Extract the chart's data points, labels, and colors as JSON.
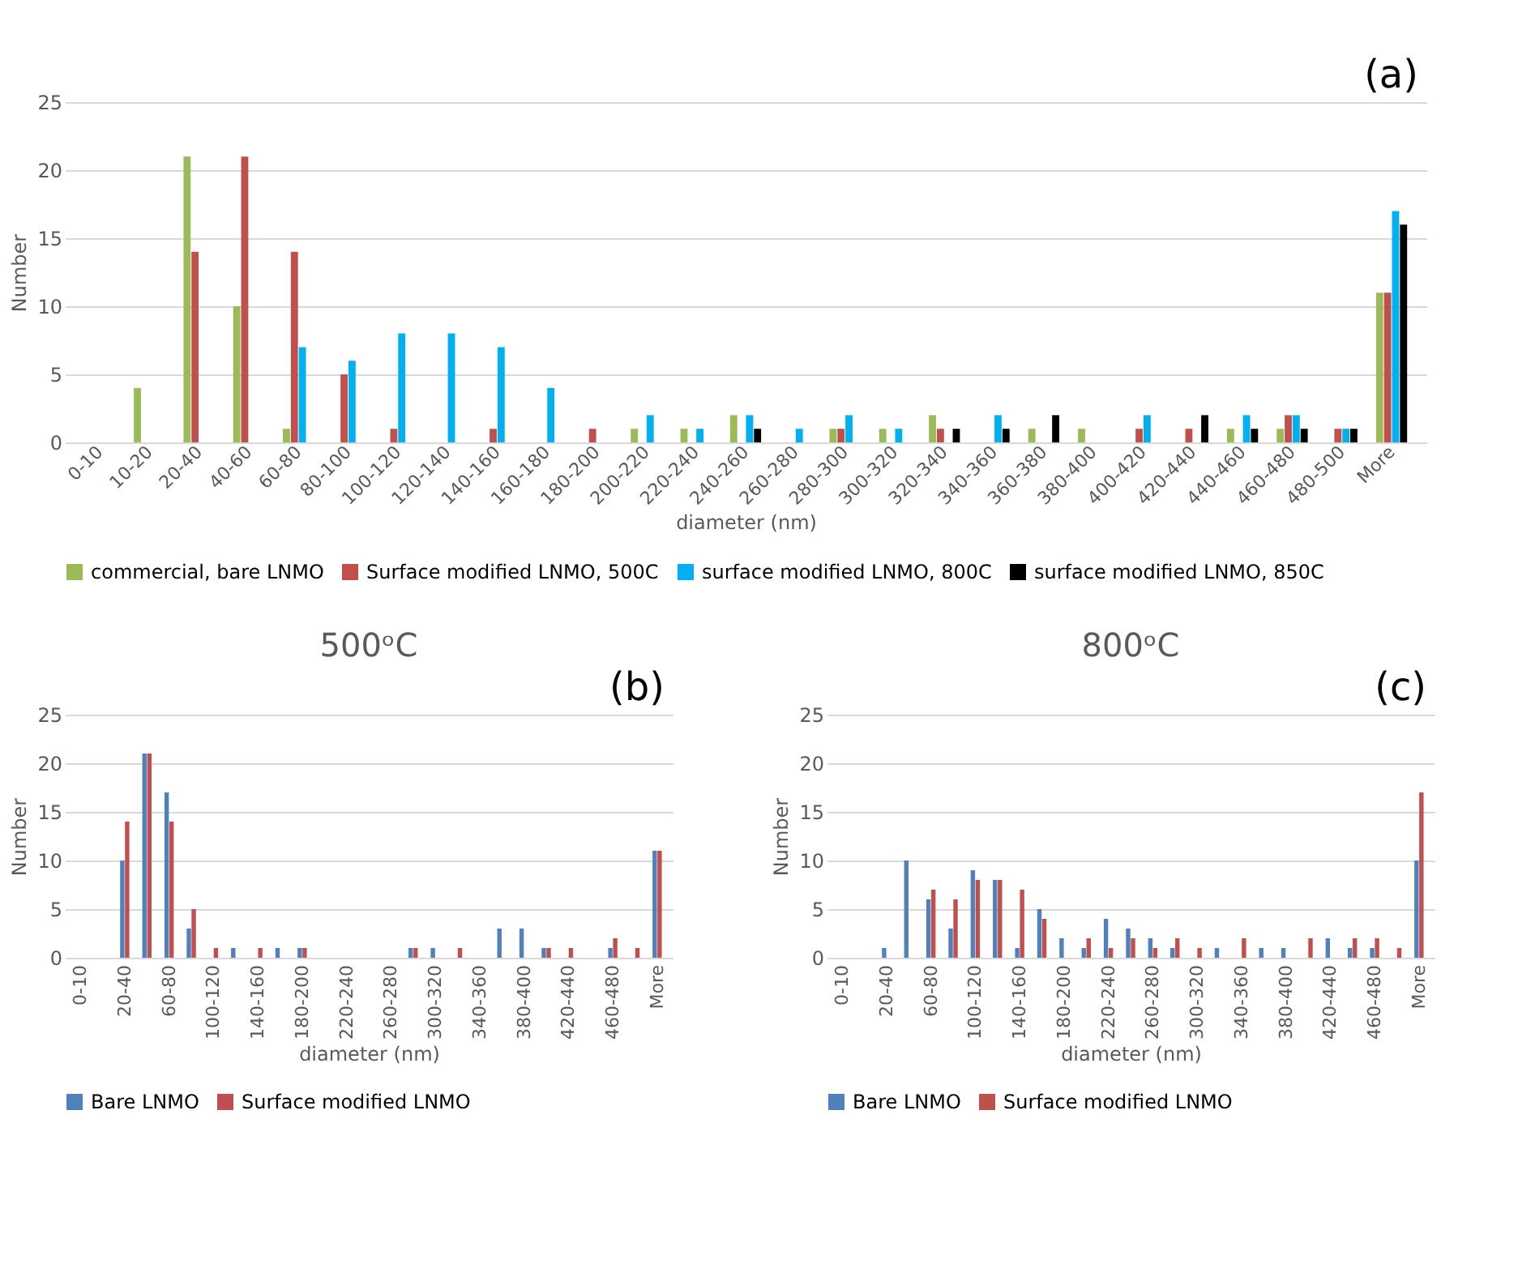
{
  "chart_data": [
    {
      "type": "bar",
      "categories": [
        "0-10",
        "10-20",
        "20-40",
        "40-60",
        "60-80",
        "80-100",
        "100-120",
        "120-140",
        "140-160",
        "160-180",
        "180-200",
        "200-220",
        "220-240",
        "240-260",
        "260-280",
        "280-300",
        "300-320",
        "320-340",
        "340-360",
        "360-380",
        "380-400",
        "400-420",
        "420-440",
        "440-460",
        "460-480",
        "480-500",
        "More"
      ],
      "series": [
        {
          "name": "commercial, bare LNMO",
          "color": "#9bbb59",
          "values": [
            0,
            4,
            21,
            10,
            1,
            0,
            0,
            0,
            0,
            0,
            0,
            1,
            1,
            2,
            0,
            1,
            1,
            2,
            0,
            1,
            1,
            0,
            0,
            1,
            1,
            0,
            11
          ]
        },
        {
          "name": "Surface modified LNMO, 500C",
          "color": "#c0504d",
          "values": [
            0,
            0,
            14,
            21,
            14,
            5,
            1,
            0,
            1,
            0,
            1,
            0,
            0,
            0,
            0,
            1,
            0,
            1,
            0,
            0,
            0,
            1,
            1,
            0,
            2,
            1,
            11
          ]
        },
        {
          "name": "surface modified LNMO, 800C",
          "color": "#00b0f0",
          "values": [
            0,
            0,
            0,
            0,
            7,
            6,
            8,
            8,
            7,
            4,
            0,
            2,
            1,
            2,
            1,
            2,
            1,
            0,
            2,
            0,
            0,
            2,
            0,
            2,
            2,
            1,
            17
          ]
        },
        {
          "name": "surface modified LNMO, 850C",
          "color": "#000000",
          "values": [
            0,
            0,
            0,
            0,
            0,
            0,
            0,
            0,
            0,
            0,
            0,
            0,
            0,
            1,
            0,
            0,
            0,
            1,
            1,
            2,
            0,
            0,
            2,
            1,
            1,
            1,
            16
          ]
        }
      ],
      "xlabel": "diameter (nm)",
      "ylabel": "Number",
      "ylim": [
        0,
        25
      ],
      "yticks": [
        0,
        5,
        10,
        15,
        20,
        25
      ],
      "grid": "y",
      "legend": "bottom",
      "annotations": [
        "(a)"
      ]
    },
    {
      "type": "bar",
      "title": "500ᵒC",
      "categories": [
        "0-10",
        null,
        "20-40",
        null,
        "60-80",
        null,
        "100-120",
        null,
        "140-160",
        null,
        "180-200",
        null,
        "220-240",
        null,
        "260-280",
        null,
        "300-320",
        null,
        "340-360",
        null,
        "380-400",
        null,
        "420-440",
        null,
        "460-480",
        null,
        "More"
      ],
      "series": [
        {
          "name": "Bare LNMO",
          "color": "#4f81bd",
          "values": [
            0,
            0,
            10,
            21,
            17,
            3,
            0,
            1,
            0,
            1,
            1,
            0,
            0,
            0,
            0,
            1,
            1,
            0,
            0,
            3,
            3,
            1,
            0,
            0,
            1,
            0,
            11
          ]
        },
        {
          "name": "Surface modified LNMO",
          "color": "#c0504d",
          "values": [
            0,
            0,
            14,
            21,
            14,
            5,
            1,
            0,
            1,
            0,
            1,
            0,
            0,
            0,
            0,
            1,
            0,
            1,
            0,
            0,
            0,
            1,
            1,
            0,
            2,
            1,
            11
          ]
        }
      ],
      "xlabel": "diameter (nm)",
      "ylabel": "Number",
      "ylim": [
        0,
        25
      ],
      "yticks": [
        0,
        5,
        10,
        15,
        20,
        25
      ],
      "grid": "y",
      "legend": "bottom",
      "annotations": [
        "(b)"
      ]
    },
    {
      "type": "bar",
      "title": "800ᵒC",
      "categories": [
        "0-10",
        null,
        "20-40",
        null,
        "60-80",
        null,
        "100-120",
        null,
        "140-160",
        null,
        "180-200",
        null,
        "220-240",
        null,
        "260-280",
        null,
        "300-320",
        null,
        "340-360",
        null,
        "380-400",
        null,
        "420-440",
        null,
        "460-480",
        null,
        "More"
      ],
      "series": [
        {
          "name": "Bare LNMO",
          "color": "#4f81bd",
          "values": [
            0,
            0,
            1,
            10,
            6,
            3,
            9,
            8,
            1,
            5,
            2,
            1,
            4,
            3,
            2,
            1,
            0,
            1,
            0,
            1,
            1,
            0,
            2,
            1,
            1,
            0,
            10
          ]
        },
        {
          "name": "Surface modified LNMO",
          "color": "#c0504d",
          "values": [
            0,
            0,
            0,
            0,
            7,
            6,
            8,
            8,
            7,
            4,
            0,
            2,
            1,
            2,
            1,
            2,
            1,
            0,
            2,
            0,
            0,
            2,
            0,
            2,
            2,
            1,
            17
          ]
        }
      ],
      "xlabel": "diameter (nm)",
      "ylabel": "Number",
      "ylim": [
        0,
        25
      ],
      "yticks": [
        0,
        5,
        10,
        15,
        20,
        25
      ],
      "grid": "y",
      "legend": "bottom",
      "annotations": [
        "(c)"
      ]
    }
  ]
}
